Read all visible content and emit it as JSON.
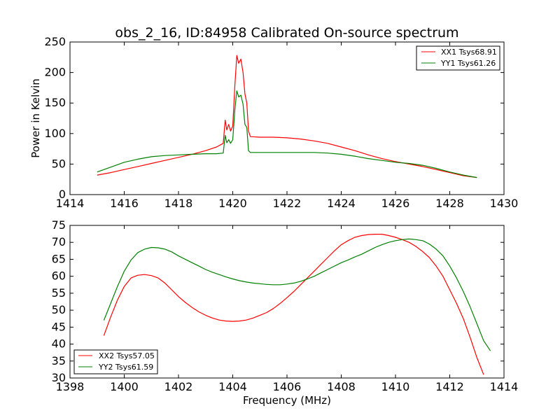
{
  "chart_data": [
    {
      "type": "line",
      "title": "obs_2_16, ID:84958 Calibrated On-source spectrum",
      "xlabel": "",
      "ylabel": "Power in Kelvin",
      "xlim": [
        1414,
        1430
      ],
      "ylim": [
        0,
        250
      ],
      "xticks": [
        "1414",
        "1416",
        "1418",
        "1420",
        "1422",
        "1424",
        "1426",
        "1428",
        "1430"
      ],
      "yticks": [
        "0",
        "50",
        "100",
        "150",
        "200",
        "250"
      ],
      "grid": false,
      "legend_position": "upper right",
      "series": [
        {
          "name": "XX1 Tsys68.91",
          "color": "#ff0000",
          "points": [
            [
              1415.0,
              32
            ],
            [
              1415.5,
              36
            ],
            [
              1416.0,
              41
            ],
            [
              1416.5,
              46
            ],
            [
              1417.0,
              51
            ],
            [
              1417.5,
              56
            ],
            [
              1418.0,
              61
            ],
            [
              1418.5,
              66
            ],
            [
              1419.0,
              72
            ],
            [
              1419.4,
              78
            ],
            [
              1419.65,
              84
            ],
            [
              1419.72,
              122
            ],
            [
              1419.78,
              106
            ],
            [
              1419.85,
              115
            ],
            [
              1419.92,
              104
            ],
            [
              1420.0,
              112
            ],
            [
              1420.08,
              180
            ],
            [
              1420.15,
              228
            ],
            [
              1420.22,
              215
            ],
            [
              1420.3,
              222
            ],
            [
              1420.38,
              200
            ],
            [
              1420.45,
              165
            ],
            [
              1420.52,
              150
            ],
            [
              1420.58,
              104
            ],
            [
              1420.65,
              95
            ],
            [
              1421.0,
              94
            ],
            [
              1421.5,
              94
            ],
            [
              1422.0,
              93
            ],
            [
              1422.5,
              91
            ],
            [
              1423.0,
              88
            ],
            [
              1423.5,
              84
            ],
            [
              1424.0,
              78
            ],
            [
              1424.5,
              72
            ],
            [
              1425.0,
              65
            ],
            [
              1425.5,
              59
            ],
            [
              1426.0,
              54
            ],
            [
              1426.5,
              50
            ],
            [
              1427.0,
              46
            ],
            [
              1427.5,
              41
            ],
            [
              1428.0,
              36
            ],
            [
              1428.5,
              31
            ],
            [
              1429.0,
              28
            ]
          ]
        },
        {
          "name": "YY1 Tsys61.26",
          "color": "#008000",
          "points": [
            [
              1415.0,
              37
            ],
            [
              1415.5,
              45
            ],
            [
              1416.0,
              53
            ],
            [
              1416.5,
              58
            ],
            [
              1417.0,
              62
            ],
            [
              1417.5,
              64
            ],
            [
              1418.0,
              65
            ],
            [
              1418.5,
              66
            ],
            [
              1419.0,
              67
            ],
            [
              1419.4,
              67
            ],
            [
              1419.65,
              68
            ],
            [
              1419.72,
              97
            ],
            [
              1419.78,
              85
            ],
            [
              1419.85,
              90
            ],
            [
              1419.92,
              84
            ],
            [
              1420.0,
              90
            ],
            [
              1420.08,
              140
            ],
            [
              1420.15,
              170
            ],
            [
              1420.22,
              160
            ],
            [
              1420.3,
              163
            ],
            [
              1420.38,
              148
            ],
            [
              1420.45,
              115
            ],
            [
              1420.52,
              110
            ],
            [
              1420.58,
              72
            ],
            [
              1420.65,
              69
            ],
            [
              1421.0,
              69
            ],
            [
              1421.5,
              69
            ],
            [
              1422.0,
              69
            ],
            [
              1422.5,
              69
            ],
            [
              1423.0,
              69
            ],
            [
              1423.5,
              68
            ],
            [
              1424.0,
              66
            ],
            [
              1424.5,
              63
            ],
            [
              1425.0,
              59
            ],
            [
              1425.5,
              56
            ],
            [
              1426.0,
              53
            ],
            [
              1426.5,
              51
            ],
            [
              1427.0,
              48
            ],
            [
              1427.5,
              43
            ],
            [
              1428.0,
              37
            ],
            [
              1428.5,
              32
            ],
            [
              1429.0,
              28
            ]
          ]
        }
      ]
    },
    {
      "type": "line",
      "title": "",
      "xlabel": "Frequency (MHz)",
      "ylabel": "",
      "xlim": [
        1398,
        1414
      ],
      "ylim": [
        30,
        75
      ],
      "xticks": [
        "1398",
        "1400",
        "1402",
        "1404",
        "1406",
        "1408",
        "1410",
        "1412",
        "1414"
      ],
      "yticks": [
        "30",
        "35",
        "40",
        "45",
        "50",
        "55",
        "60",
        "65",
        "70",
        "75"
      ],
      "grid": false,
      "legend_position": "lower left",
      "series": [
        {
          "name": "XX2 Tsys57.05",
          "color": "#ff0000",
          "points": [
            [
              1399.25,
              42.5
            ],
            [
              1399.5,
              48
            ],
            [
              1399.75,
              53
            ],
            [
              1400.0,
              57
            ],
            [
              1400.25,
              59.5
            ],
            [
              1400.5,
              60.3
            ],
            [
              1400.75,
              60.5
            ],
            [
              1401.0,
              60.2
            ],
            [
              1401.25,
              59.5
            ],
            [
              1401.5,
              58
            ],
            [
              1401.75,
              56
            ],
            [
              1402.0,
              54
            ],
            [
              1402.25,
              52.3
            ],
            [
              1402.5,
              50.8
            ],
            [
              1402.75,
              49.5
            ],
            [
              1403.0,
              48.5
            ],
            [
              1403.25,
              47.7
            ],
            [
              1403.5,
              47.1
            ],
            [
              1403.75,
              46.8
            ],
            [
              1404.0,
              46.7
            ],
            [
              1404.25,
              46.8
            ],
            [
              1404.5,
              47.1
            ],
            [
              1404.75,
              47.7
            ],
            [
              1405.0,
              48.5
            ],
            [
              1405.25,
              49.3
            ],
            [
              1405.5,
              50.5
            ],
            [
              1405.75,
              52
            ],
            [
              1406.0,
              53.7
            ],
            [
              1406.25,
              55.5
            ],
            [
              1406.5,
              57.5
            ],
            [
              1406.75,
              59.5
            ],
            [
              1407.0,
              61.5
            ],
            [
              1407.25,
              63.5
            ],
            [
              1407.5,
              65.5
            ],
            [
              1407.75,
              67.5
            ],
            [
              1408.0,
              69.3
            ],
            [
              1408.25,
              70.5
            ],
            [
              1408.5,
              71.5
            ],
            [
              1408.75,
              72
            ],
            [
              1409.0,
              72.3
            ],
            [
              1409.25,
              72.4
            ],
            [
              1409.5,
              72.4
            ],
            [
              1409.75,
              72
            ],
            [
              1410.0,
              71.5
            ],
            [
              1410.25,
              70.8
            ],
            [
              1410.5,
              70
            ],
            [
              1410.75,
              68.8
            ],
            [
              1411.0,
              67.3
            ],
            [
              1411.25,
              65.5
            ],
            [
              1411.5,
              63
            ],
            [
              1411.75,
              60
            ],
            [
              1412.0,
              56
            ],
            [
              1412.25,
              52
            ],
            [
              1412.5,
              47.5
            ],
            [
              1412.75,
              42
            ],
            [
              1413.0,
              36
            ],
            [
              1413.25,
              31
            ]
          ]
        },
        {
          "name": "YY2 Tsys61.59",
          "color": "#008000",
          "points": [
            [
              1399.25,
              47
            ],
            [
              1399.5,
              52
            ],
            [
              1399.75,
              57
            ],
            [
              1400.0,
              61.5
            ],
            [
              1400.25,
              64.8
            ],
            [
              1400.5,
              67
            ],
            [
              1400.75,
              68
            ],
            [
              1401.0,
              68.5
            ],
            [
              1401.25,
              68.4
            ],
            [
              1401.5,
              68
            ],
            [
              1401.75,
              67.2
            ],
            [
              1402.0,
              66
            ],
            [
              1402.25,
              65
            ],
            [
              1402.5,
              64
            ],
            [
              1402.75,
              63
            ],
            [
              1403.0,
              62
            ],
            [
              1403.25,
              61.2
            ],
            [
              1403.5,
              60.5
            ],
            [
              1403.75,
              59.8
            ],
            [
              1404.0,
              59.2
            ],
            [
              1404.25,
              58.7
            ],
            [
              1404.5,
              58.3
            ],
            [
              1404.75,
              58
            ],
            [
              1405.0,
              57.8
            ],
            [
              1405.25,
              57.6
            ],
            [
              1405.5,
              57.5
            ],
            [
              1405.75,
              57.5
            ],
            [
              1406.0,
              57.7
            ],
            [
              1406.25,
              58
            ],
            [
              1406.5,
              58.5
            ],
            [
              1406.75,
              59.2
            ],
            [
              1407.0,
              60
            ],
            [
              1407.25,
              61
            ],
            [
              1407.5,
              62
            ],
            [
              1407.75,
              63
            ],
            [
              1408.0,
              64
            ],
            [
              1408.25,
              64.8
            ],
            [
              1408.5,
              65.7
            ],
            [
              1408.75,
              66.5
            ],
            [
              1409.0,
              67.5
            ],
            [
              1409.25,
              68.5
            ],
            [
              1409.5,
              69.3
            ],
            [
              1409.75,
              70
            ],
            [
              1410.0,
              70.5
            ],
            [
              1410.25,
              70.8
            ],
            [
              1410.5,
              71
            ],
            [
              1410.75,
              70.8
            ],
            [
              1411.0,
              70.5
            ],
            [
              1411.25,
              69.5
            ],
            [
              1411.5,
              68
            ],
            [
              1411.75,
              66
            ],
            [
              1412.0,
              63
            ],
            [
              1412.25,
              59.5
            ],
            [
              1412.5,
              55.5
            ],
            [
              1412.75,
              51
            ],
            [
              1413.0,
              46
            ],
            [
              1413.25,
              41
            ],
            [
              1413.5,
              38
            ]
          ]
        }
      ]
    }
  ]
}
